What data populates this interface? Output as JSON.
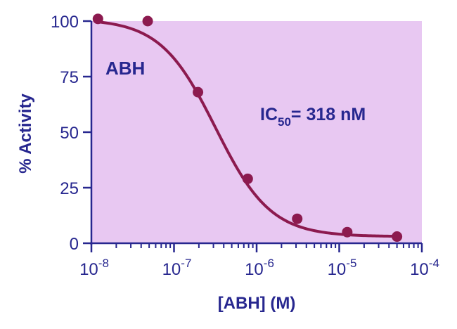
{
  "chart_data": {
    "type": "scatter",
    "xlabel": "[ABH] (M)",
    "ylabel": "% Activity",
    "x_scale": "log",
    "xlim": [
      1e-08,
      0.0001
    ],
    "ylim": [
      0,
      100
    ],
    "x_ticks": [
      {
        "value": 1e-08,
        "base": "10",
        "exp": "-8"
      },
      {
        "value": 1e-07,
        "base": "10",
        "exp": "-7"
      },
      {
        "value": 1e-06,
        "base": "10",
        "exp": "-6"
      },
      {
        "value": 1e-05,
        "base": "10",
        "exp": "-5"
      },
      {
        "value": 0.0001,
        "base": "10",
        "exp": "-4"
      }
    ],
    "y_ticks": [
      {
        "value": 0,
        "label": "0"
      },
      {
        "value": 25,
        "label": "25"
      },
      {
        "value": 50,
        "label": "50"
      },
      {
        "value": 75,
        "label": "75"
      },
      {
        "value": 100,
        "label": "100"
      }
    ],
    "series": [
      {
        "name": "ABH",
        "x": [
          1.2e-08,
          4.8e-08,
          1.95e-07,
          7.8e-07,
          3.1e-06,
          1.25e-05,
          5e-05
        ],
        "y": [
          101,
          100,
          68,
          29,
          11,
          5,
          3
        ],
        "fit": {
          "model": "4PL",
          "top": 101,
          "bottom": 3,
          "ic50": 3.18e-07,
          "hill": 1.3
        }
      }
    ],
    "annotations": {
      "series_label": "ABH",
      "ic50_prefix": "IC",
      "ic50_sub": "50",
      "ic50_value": "= 318 nM"
    },
    "colors": {
      "plot_bg": "#e8c8f2",
      "series": "#8c1a4f",
      "text": "#27278f"
    }
  }
}
